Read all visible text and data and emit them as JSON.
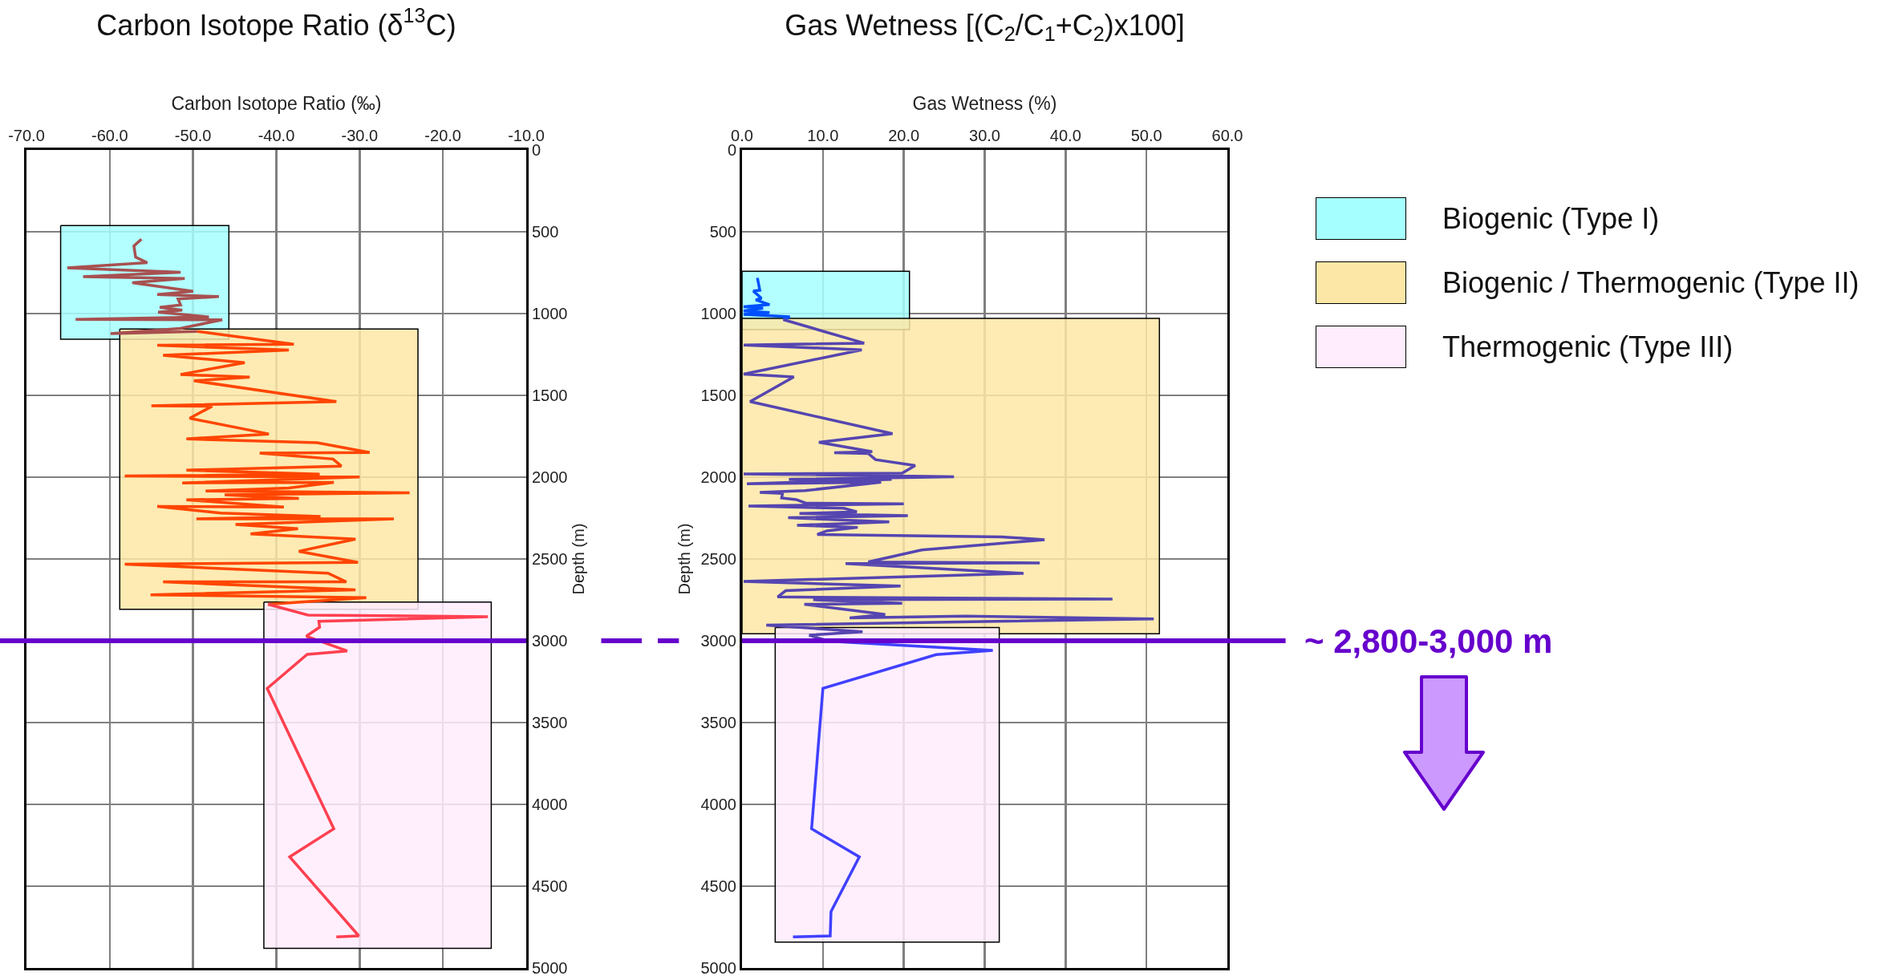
{
  "chart_data": [
    {
      "type": "line",
      "title": "Carbon Isotope Ratio (δ$^{13}$C)",
      "xlabel": "Carbon Isotope Ratio (‰)",
      "ylabel": "Depth (m)",
      "legend": false,
      "grid": true,
      "line_style": "solid",
      "marker": "none",
      "xlim": [
        -70,
        -10
      ],
      "xticks": [
        {
          "value": -70,
          "label": "-70.0"
        },
        {
          "value": -60,
          "label": "-60.0"
        },
        {
          "value": -50,
          "label": "-50.0"
        },
        {
          "value": -40,
          "label": "-40.0"
        },
        {
          "value": -30,
          "label": "-30.0"
        },
        {
          "value": -20,
          "label": "-20.0"
        },
        {
          "value": -10,
          "label": "-10.0"
        }
      ],
      "ylim": [
        5000,
        0
      ],
      "yticks": [
        0,
        500,
        1000,
        1500,
        2000,
        2500,
        3000,
        3500,
        4000,
        4500,
        5000
      ],
      "ref_lines": [
        {
          "axis": "y",
          "value": 3000,
          "color": "#6600cc"
        }
      ],
      "series": [
        {
          "type": "area",
          "color": "#a6ffff",
          "x": [
            -65.9,
            -45.7,
            -45.7,
            -65.9,
            -65.9
          ],
          "values": [
            462,
            462,
            1157,
            1157,
            462
          ]
        },
        {
          "type": "area",
          "color": "#fde7a6",
          "x": [
            -58.8,
            -23.0,
            -23.0,
            -58.8,
            -58.8
          ],
          "values": [
            1094,
            1094,
            2807,
            2807,
            1094
          ]
        },
        {
          "type": "area",
          "color": "#ffecfd",
          "x": [
            -41.5,
            -14.2,
            -14.2,
            -41.5,
            -41.5
          ],
          "values": [
            2764,
            2764,
            4880,
            4880,
            2764
          ]
        },
        {
          "type": "line",
          "color": "#a85050",
          "x": [
            -56.2,
            -57.1,
            -56.9,
            -55.5,
            -65.1,
            -51.5,
            -63.2,
            -51.0,
            -57.3,
            -50.0,
            -54.3,
            -46.9,
            -51.8,
            -51.5,
            -54.0,
            -51.3,
            -54.2,
            -48.1,
            -64.1,
            -46.5,
            -51.5,
            -59.9,
            -49.5
          ],
          "values": [
            545,
            587,
            655,
            689,
            721,
            747,
            774,
            785,
            811,
            864,
            883,
            896,
            911,
            947,
            962,
            979,
            991,
            1021,
            1036,
            1038,
            1091,
            1123,
            1109
          ]
        },
        {
          "type": "line",
          "color": "#ff4500",
          "x": [
            -49.5,
            -37.9,
            -54.3,
            -38.5,
            -53.6,
            -43.8,
            -51.5,
            -43.2,
            -49.9,
            -32.8,
            -55.0,
            -47.7,
            -50.4,
            -40.9,
            -50.8,
            -35.1,
            -28.8,
            -42.0,
            -33.2,
            -32.2,
            -50.8,
            -34.8,
            -58.2,
            -30.0,
            -51.3,
            -33.1,
            -38.5,
            -48.5,
            -24.0,
            -46.2,
            -37.3,
            -50.8,
            -39.1,
            -54.3,
            -46.7,
            -34.7,
            -49.6,
            -25.9,
            -44.9,
            -37.4,
            -43.1,
            -30.5,
            -37.3,
            -30.2,
            -58.2,
            -33.8,
            -31.6,
            -53.6,
            -30.5,
            -55.1,
            -29.2,
            -41.0
          ],
          "values": [
            1109,
            1187,
            1194,
            1223,
            1255,
            1300,
            1372,
            1389,
            1411,
            1538,
            1564,
            1566,
            1640,
            1736,
            1766,
            1789,
            1849,
            1853,
            1889,
            1932,
            1957,
            1982,
            1993,
            1999,
            2035,
            2032,
            2066,
            2085,
            2096,
            2108,
            2130,
            2138,
            2183,
            2179,
            2219,
            2240,
            2255,
            2255,
            2289,
            2315,
            2347,
            2379,
            2453,
            2521,
            2532,
            2587,
            2640,
            2640,
            2689,
            2719,
            2736,
            2777
          ]
        },
        {
          "type": "line",
          "color": "#ff4050",
          "x": [
            -41.0,
            -36.2,
            -14.6,
            -34.9,
            -34.8,
            -36.4,
            -31.5,
            -36.3,
            -41.1,
            -33.1,
            -38.4,
            -30.1,
            -32.8
          ],
          "values": [
            2777,
            2843,
            2853,
            2881,
            2917,
            2972,
            3062,
            3083,
            3291,
            4149,
            4321,
            4804,
            4810
          ]
        }
      ]
    },
    {
      "type": "line",
      "title": "Gas Wetness [(C$_{2}$/C$_{1}$+C$_{2}$)x100]",
      "xlabel": "Gas Wetness (%)",
      "ylabel": "Depth (m)",
      "legend": "right",
      "grid": true,
      "line_style": "solid",
      "marker": "none",
      "xlim": [
        0,
        60
      ],
      "xticks": [
        {
          "value": 0,
          "label": "0.0"
        },
        {
          "value": 10,
          "label": "10.0"
        },
        {
          "value": 20,
          "label": "20.0"
        },
        {
          "value": 30,
          "label": "30.0"
        },
        {
          "value": 40,
          "label": "40.0"
        },
        {
          "value": 50,
          "label": "50.0"
        },
        {
          "value": 60,
          "label": "60.0"
        }
      ],
      "ylim": [
        5000,
        0
      ],
      "yticks": [
        0,
        500,
        1000,
        1500,
        2000,
        2500,
        3000,
        3500,
        4000,
        4500,
        5000
      ],
      "ref_lines": [
        {
          "axis": "y",
          "value": 3000,
          "color": "#6600cc",
          "label": "~ 2,800-3,000 m"
        }
      ],
      "series": [
        {
          "type": "area",
          "name": "Biogenic (Type I)",
          "color": "#a6ffff",
          "x": [
            0,
            20.7,
            20.7,
            0,
            0
          ],
          "values": [
            741,
            741,
            1098,
            1098,
            741
          ]
        },
        {
          "type": "area",
          "name": "Biogenic / Thermogenic (Type II)",
          "color": "#fde7a6",
          "x": [
            0,
            51.6,
            51.6,
            0,
            0
          ],
          "values": [
            1030,
            1030,
            2957,
            2957,
            1030
          ]
        },
        {
          "type": "area",
          "name": "Thermogenic (Type III)",
          "color": "#ffecfd",
          "x": [
            4.1,
            31.8,
            31.8,
            4.1,
            4.1
          ],
          "values": [
            2919,
            2919,
            4842,
            4842,
            2919
          ]
        },
        {
          "type": "line",
          "color": "#0050ff",
          "x": [
            1.9,
            2.2,
            1.4,
            2.4,
            1.7,
            3.4,
            0.2,
            2.6,
            0.2,
            3.4,
            0.2,
            5.9,
            5.1
          ],
          "values": [
            782,
            858,
            862,
            907,
            916,
            945,
            958,
            967,
            984,
            994,
            1005,
            1020,
            1037
          ]
        },
        {
          "type": "line",
          "color": "#5545b0",
          "x": [
            5.1,
            15.1,
            0.2,
            14.8,
            0.2,
            6.4,
            1.0,
            18.6,
            9.5,
            16.1,
            11.4,
            15.6,
            16.5,
            21.4,
            19.8,
            0.2,
            26.2,
            5.8,
            18.5,
            0.6,
            17.2,
            7.8,
            2.2,
            5.0,
            4.9,
            6.7,
            7.9,
            20.0,
            0.8,
            12.6,
            14.2,
            7.1,
            20.5,
            5.7,
            18.2,
            6.8,
            14.3,
            10.5,
            9.3,
            32.1,
            37.4,
            22.2,
            15.6,
            36.8,
            12.8,
            34.8,
            0.2,
            19.6,
            5.4,
            4.4,
            45.8,
            8.8,
            19.8,
            7.7,
            17.7,
            13.3,
            27.6,
            50.9,
            3.0,
            14.9,
            8.3,
            10.7
          ],
          "values": [
            1037,
            1181,
            1192,
            1222,
            1370,
            1387,
            1538,
            1734,
            1787,
            1844,
            1850,
            1855,
            1893,
            1929,
            1976,
            1980,
            1997,
            2014,
            2014,
            2040,
            2031,
            2082,
            2093,
            2099,
            2127,
            2137,
            2159,
            2163,
            2176,
            2190,
            2212,
            2222,
            2235,
            2248,
            2273,
            2294,
            2307,
            2328,
            2350,
            2365,
            2382,
            2445,
            2518,
            2524,
            2528,
            2588,
            2637,
            2666,
            2694,
            2732,
            2745,
            2749,
            2771,
            2777,
            2839,
            2860,
            2849,
            2866,
            2904,
            2945,
            2966,
            3002
          ]
        },
        {
          "type": "line",
          "color": "#4040ff",
          "x": [
            10.7,
            31.0,
            24.0,
            10.0,
            8.6,
            14.5,
            11.0,
            10.9,
            6.3
          ],
          "values": [
            3002,
            3059,
            3085,
            3291,
            4149,
            4321,
            4655,
            4804,
            4810
          ]
        }
      ]
    }
  ]
}
